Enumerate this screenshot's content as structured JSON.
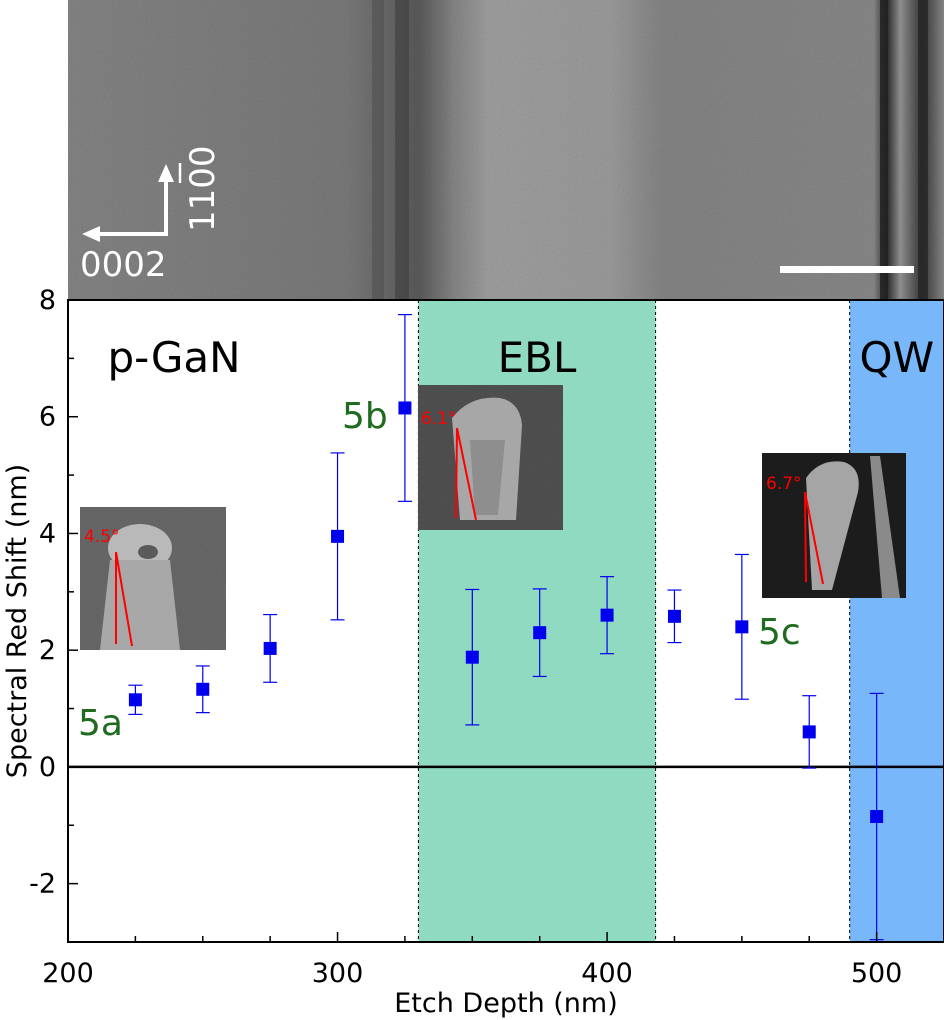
{
  "tem": {
    "axis_c_label": "0002",
    "axis_m_label": "1100",
    "colors": {
      "background": "#8f8f8f",
      "scalebar": "#ffffff"
    }
  },
  "chart_data": {
    "type": "scatter",
    "xlabel": "Etch Depth (nm)",
    "ylabel": "Spectral Red Shift (nm)",
    "xlim": [
      200,
      525
    ],
    "ylim": [
      -3,
      8
    ],
    "x_ticks": [
      "200",
      "300",
      "400",
      "500"
    ],
    "y_ticks": [
      "-2",
      "0",
      "2",
      "4",
      "6",
      "8"
    ],
    "regions": [
      {
        "label": "p-GaN",
        "x_start": 200,
        "x_end": 330,
        "color": "#ffffff"
      },
      {
        "label": "EBL",
        "x_start": 330,
        "x_end": 418,
        "color": "#8fdac0"
      },
      {
        "label": "QW",
        "x_start": 490,
        "x_end": 525,
        "color": "#78b8fa"
      }
    ],
    "zero_line": 0,
    "marker_color": "#0000ee",
    "points": [
      {
        "x": 225,
        "y": 1.15,
        "err_low": 0.25,
        "err_high": 0.25
      },
      {
        "x": 250,
        "y": 1.33,
        "err_low": 0.4,
        "err_high": 0.4
      },
      {
        "x": 275,
        "y": 2.03,
        "err_low": 0.58,
        "err_high": 0.58
      },
      {
        "x": 300,
        "y": 3.95,
        "err_low": 1.43,
        "err_high": 1.43
      },
      {
        "x": 325,
        "y": 6.15,
        "err_low": 1.6,
        "err_high": 1.6
      },
      {
        "x": 350,
        "y": 1.88,
        "err_low": 1.16,
        "err_high": 1.16
      },
      {
        "x": 375,
        "y": 2.3,
        "err_low": 0.75,
        "err_high": 0.75
      },
      {
        "x": 400,
        "y": 2.6,
        "err_low": 0.66,
        "err_high": 0.66
      },
      {
        "x": 425,
        "y": 2.58,
        "err_low": 0.45,
        "err_high": 0.45
      },
      {
        "x": 450,
        "y": 2.4,
        "err_low": 1.24,
        "err_high": 1.24
      },
      {
        "x": 475,
        "y": 0.6,
        "err_low": 0.62,
        "err_high": 0.62
      },
      {
        "x": 500,
        "y": -0.85,
        "err_low": 2.11,
        "err_high": 2.11
      }
    ],
    "annotations": [
      {
        "label": "5a",
        "color": "#1f6b1f"
      },
      {
        "label": "5b",
        "color": "#1f6b1f"
      },
      {
        "label": "5c",
        "color": "#1f6b1f"
      }
    ],
    "insets": [
      {
        "name": "5a",
        "angle_label": "4.5°"
      },
      {
        "name": "5b",
        "angle_label": "6.1°"
      },
      {
        "name": "5c",
        "angle_label": "6.7°"
      }
    ]
  }
}
